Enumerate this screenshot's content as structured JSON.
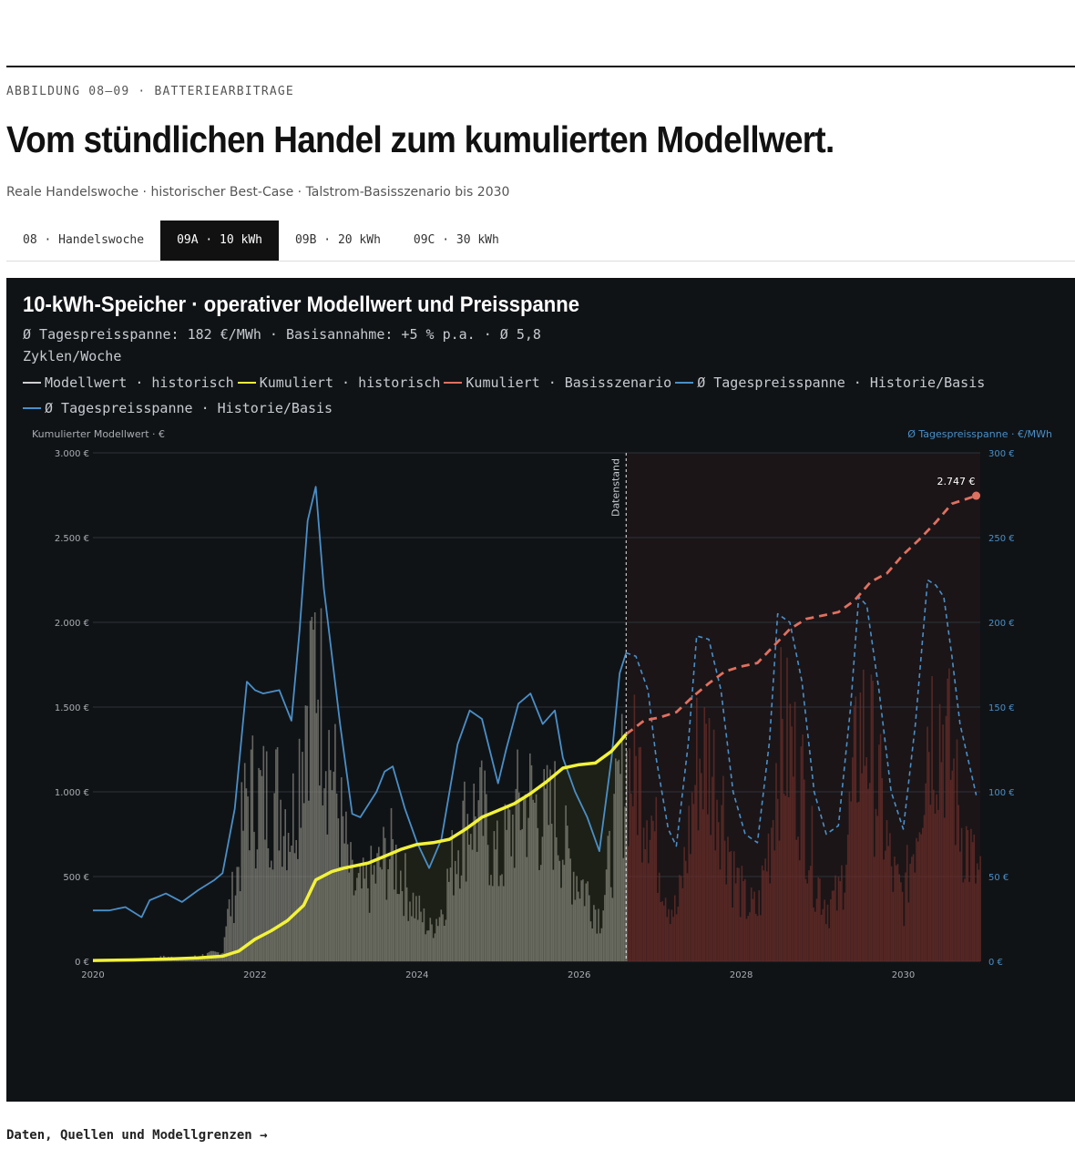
{
  "figure_label": "ABBILDUNG 08–09 · BATTERIEARBITRAGE",
  "headline": "Vom stündlichen Handel zum kumulierten Modellwert.",
  "subline": "Reale Handelswoche · historischer Best-Case · Talstrom-Basisszenario bis 2030",
  "tabs": [
    {
      "label": "08 · Handelswoche",
      "active": false
    },
    {
      "label": "09A · 10 kWh",
      "active": true
    },
    {
      "label": "09B · 20 kWh",
      "active": false
    },
    {
      "label": "09C · 30 kWh",
      "active": false
    }
  ],
  "footer_link": "Daten, Quellen und Modellgrenzen →",
  "colors": {
    "panel_bg": "#101316",
    "bars_hist": "#8a8a80",
    "bars_forecast": "#6b2e2a",
    "cumulative_hist": "#f2f23a",
    "cumulative_base": "#e07060",
    "spread": "#4a8fc8",
    "grid": "#2e3338",
    "axis_text": "#a9adb2"
  },
  "chart_data": {
    "type": "line",
    "title": "10-kWh-Speicher · operativer Modellwert und Preisspanne",
    "subtitle": "Ø Tagespreisspanne: 182 €/MWh · Basisannahme: +5 % p.a. · Ø 5,8 Zyklen/Woche",
    "legend": [
      {
        "label": "Modellwert · historisch",
        "color": "#cfcfcf"
      },
      {
        "label": "Kumuliert · historisch",
        "color": "#f2f23a"
      },
      {
        "label": "Kumuliert · Basisszenario",
        "color": "#e07060"
      },
      {
        "label": "Ø Tagespreisspanne · Historie/Basis",
        "color": "#4a8fc8"
      },
      {
        "label": "Ø Tagespreisspanne · Historie/Basis",
        "color": "#4a8fc8"
      }
    ],
    "ylabel_left": "Kumulierter Modellwert · €",
    "ylabel_right": "Ø Tagespreisspanne · €/MWh",
    "xlim": [
      2020.0,
      2030.95
    ],
    "ylim_left": [
      0,
      3000
    ],
    "ylim_right": [
      0,
      300
    ],
    "x_ticks": [
      2020,
      2022,
      2024,
      2026,
      2028,
      2030
    ],
    "x_tick_labels": [
      "2020",
      "2022",
      "2024",
      "2026",
      "2028",
      "2030"
    ],
    "y_left_ticks": [
      0,
      500,
      1000,
      1500,
      2000,
      2500,
      3000
    ],
    "y_left_tick_labels": [
      "0 €",
      "500 €",
      "1.000 €",
      "1.500 €",
      "2.000 €",
      "2.500 €",
      "3.000 €"
    ],
    "y_right_ticks": [
      0,
      50,
      100,
      150,
      200,
      250,
      300
    ],
    "y_right_tick_labels": [
      "0 €",
      "50 €",
      "100 €",
      "150 €",
      "200 €",
      "250 €",
      "300 €"
    ],
    "grid": true,
    "data_cutoff": {
      "x": 2026.58,
      "label": "Datenstand"
    },
    "end_value": {
      "x": 2030.9,
      "y": 2747,
      "label": "2.747 €"
    },
    "cumulative_hist": {
      "x": [
        2020.0,
        2020.5,
        2021.0,
        2021.3,
        2021.6,
        2021.8,
        2022.0,
        2022.2,
        2022.4,
        2022.6,
        2022.75,
        2022.95,
        2023.1,
        2023.4,
        2023.6,
        2023.8,
        2024.0,
        2024.2,
        2024.4,
        2024.6,
        2024.8,
        2025.0,
        2025.2,
        2025.4,
        2025.6,
        2025.8,
        2026.0,
        2026.2,
        2026.4,
        2026.58
      ],
      "y": [
        5,
        8,
        15,
        20,
        30,
        60,
        130,
        180,
        240,
        330,
        480,
        530,
        550,
        580,
        620,
        660,
        690,
        700,
        720,
        780,
        850,
        890,
        930,
        990,
        1060,
        1140,
        1160,
        1170,
        1240,
        1340
      ]
    },
    "cumulative_base": {
      "x": [
        2026.58,
        2026.8,
        2027.0,
        2027.2,
        2027.4,
        2027.6,
        2027.8,
        2028.0,
        2028.2,
        2028.4,
        2028.6,
        2028.8,
        2029.0,
        2029.2,
        2029.4,
        2029.6,
        2029.8,
        2030.0,
        2030.2,
        2030.4,
        2030.6,
        2030.9
      ],
      "y": [
        1340,
        1420,
        1440,
        1470,
        1560,
        1640,
        1710,
        1740,
        1760,
        1860,
        1960,
        2020,
        2040,
        2060,
        2130,
        2240,
        2290,
        2400,
        2490,
        2590,
        2700,
        2747
      ]
    },
    "spread_hist": {
      "x": [
        2020.0,
        2020.2,
        2020.4,
        2020.6,
        2020.7,
        2020.9,
        2021.1,
        2021.3,
        2021.5,
        2021.6,
        2021.75,
        2021.9,
        2022.0,
        2022.1,
        2022.3,
        2022.45,
        2022.55,
        2022.65,
        2022.75,
        2022.85,
        2022.95,
        2023.05,
        2023.2,
        2023.3,
        2023.5,
        2023.6,
        2023.7,
        2023.85,
        2024.0,
        2024.15,
        2024.3,
        2024.5,
        2024.65,
        2024.8,
        2025.0,
        2025.1,
        2025.25,
        2025.4,
        2025.55,
        2025.7,
        2025.8,
        2025.95,
        2026.1,
        2026.25,
        2026.4,
        2026.5,
        2026.58
      ],
      "y": [
        30,
        30,
        32,
        26,
        36,
        40,
        35,
        42,
        48,
        52,
        90,
        165,
        160,
        158,
        160,
        142,
        195,
        260,
        280,
        220,
        180,
        140,
        87,
        85,
        100,
        112,
        115,
        90,
        70,
        55,
        72,
        128,
        148,
        143,
        105,
        125,
        152,
        158,
        140,
        148,
        120,
        100,
        85,
        65,
        120,
        170,
        182
      ]
    },
    "spread_base": {
      "x": [
        2026.58,
        2026.7,
        2026.85,
        2026.95,
        2027.1,
        2027.2,
        2027.35,
        2027.45,
        2027.6,
        2027.75,
        2027.9,
        2028.05,
        2028.2,
        2028.35,
        2028.45,
        2028.6,
        2028.75,
        2028.9,
        2029.05,
        2029.2,
        2029.35,
        2029.45,
        2029.55,
        2029.7,
        2029.85,
        2030.0,
        2030.15,
        2030.3,
        2030.4,
        2030.5,
        2030.6,
        2030.7,
        2030.9
      ],
      "y": [
        182,
        180,
        160,
        120,
        78,
        68,
        130,
        192,
        190,
        160,
        100,
        75,
        70,
        130,
        205,
        200,
        165,
        100,
        75,
        80,
        150,
        215,
        210,
        160,
        100,
        78,
        140,
        225,
        222,
        215,
        180,
        140,
        98
      ]
    }
  }
}
